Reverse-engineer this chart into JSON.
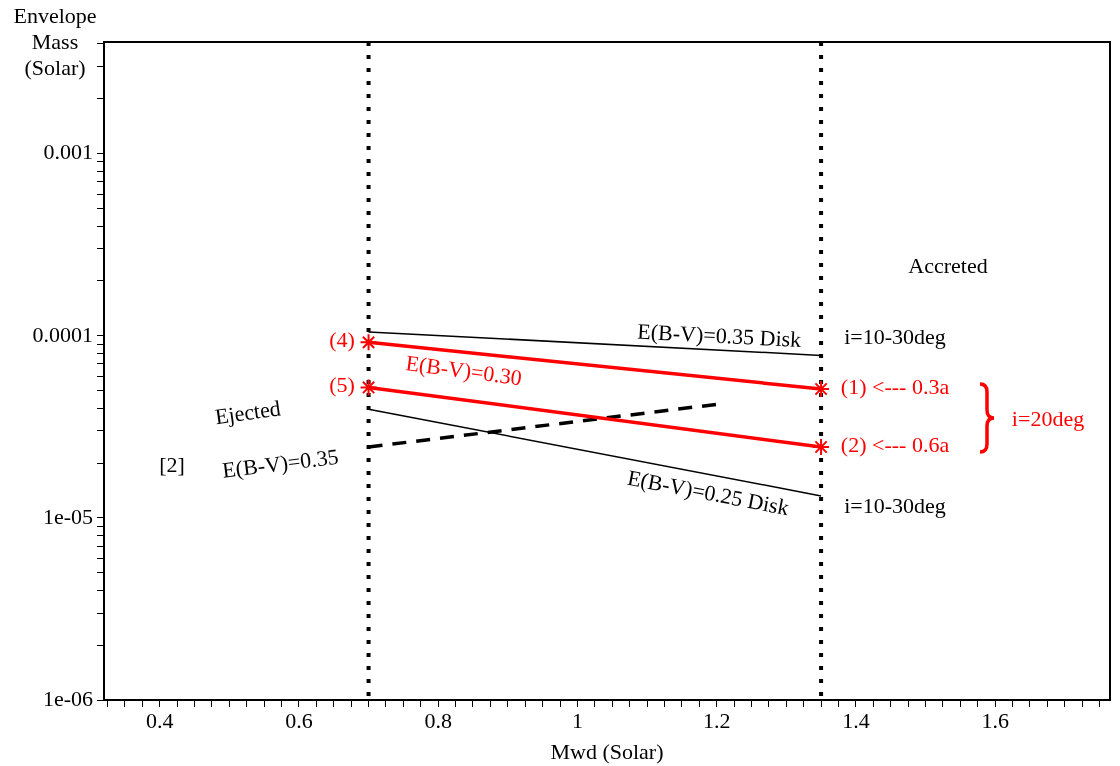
{
  "chart_data": {
    "type": "line",
    "xlabel": "Mwd (Solar)",
    "ylabel": "Envelope Mass (Solar)",
    "log": "y",
    "grid": false,
    "legend": false,
    "xlim": [
      0.32,
      1.765
    ],
    "ylim": [
      1e-06,
      0.0041
    ],
    "xticks": [
      {
        "value": 0.325,
        "label": null
      },
      {
        "value": 0.35,
        "label": null
      },
      {
        "value": 0.375,
        "label": null
      },
      0.4,
      {
        "value": 0.425,
        "label": null
      },
      {
        "value": 0.45,
        "label": null
      },
      {
        "value": 0.475,
        "label": null
      },
      {
        "value": 0.5,
        "label": null
      },
      {
        "value": 0.525,
        "label": null
      },
      {
        "value": 0.55,
        "label": null
      },
      {
        "value": 0.575,
        "label": null
      },
      0.6,
      {
        "value": 0.625,
        "label": null
      },
      {
        "value": 0.65,
        "label": null
      },
      {
        "value": 0.675,
        "label": null
      },
      {
        "value": 0.7,
        "label": null
      },
      {
        "value": 0.725,
        "label": null
      },
      {
        "value": 0.75,
        "label": null
      },
      {
        "value": 0.775,
        "label": null
      },
      0.8,
      {
        "value": 0.825,
        "label": null
      },
      {
        "value": 0.85,
        "label": null
      },
      {
        "value": 0.875,
        "label": null
      },
      {
        "value": 0.9,
        "label": null
      },
      {
        "value": 0.925,
        "label": null
      },
      {
        "value": 0.95,
        "label": null
      },
      {
        "value": 0.975,
        "label": null
      },
      1,
      {
        "value": 1.025,
        "label": null
      },
      {
        "value": 1.05,
        "label": null
      },
      {
        "value": 1.075,
        "label": null
      },
      {
        "value": 1.1,
        "label": null
      },
      {
        "value": 1.125,
        "label": null
      },
      {
        "value": 1.15,
        "label": null
      },
      {
        "value": 1.175,
        "label": null
      },
      1.2,
      {
        "value": 1.225,
        "label": null
      },
      {
        "value": 1.25,
        "label": null
      },
      {
        "value": 1.275,
        "label": null
      },
      {
        "value": 1.3,
        "label": null
      },
      {
        "value": 1.325,
        "label": null
      },
      {
        "value": 1.35,
        "label": null
      },
      {
        "value": 1.375,
        "label": null
      },
      1.4,
      {
        "value": 1.425,
        "label": null
      },
      {
        "value": 1.45,
        "label": null
      },
      {
        "value": 1.475,
        "label": null
      },
      {
        "value": 1.5,
        "label": null
      },
      {
        "value": 1.525,
        "label": null
      },
      {
        "value": 1.55,
        "label": null
      },
      {
        "value": 1.575,
        "label": null
      },
      1.6,
      {
        "value": 1.625,
        "label": null
      },
      {
        "value": 1.65,
        "label": null
      },
      {
        "value": 1.675,
        "label": null
      },
      {
        "value": 1.7,
        "label": null
      },
      {
        "value": 1.725,
        "label": null
      },
      {
        "value": 1.75,
        "label": null
      }
    ],
    "yticks": [
      {
        "value": 1e-06,
        "label": "1e-06"
      },
      {
        "value": 2e-06,
        "label": null
      },
      {
        "value": 3e-06,
        "label": null
      },
      {
        "value": 4e-06,
        "label": null
      },
      {
        "value": 5e-06,
        "label": null
      },
      {
        "value": 6e-06,
        "label": null
      },
      {
        "value": 7e-06,
        "label": null
      },
      {
        "value": 8e-06,
        "label": null
      },
      {
        "value": 9e-06,
        "label": null
      },
      {
        "value": 1e-05,
        "label": "1e-05"
      },
      {
        "value": 2e-05,
        "label": null
      },
      {
        "value": 3e-05,
        "label": null
      },
      {
        "value": 4e-05,
        "label": null
      },
      {
        "value": 5e-05,
        "label": null
      },
      {
        "value": 6e-05,
        "label": null
      },
      {
        "value": 7e-05,
        "label": null
      },
      {
        "value": 8e-05,
        "label": null
      },
      {
        "value": 9e-05,
        "label": null
      },
      {
        "value": 0.0001,
        "label": "0.0001"
      },
      {
        "value": 0.0002,
        "label": null
      },
      {
        "value": 0.0003,
        "label": null
      },
      {
        "value": 0.0004,
        "label": null
      },
      {
        "value": 0.0005,
        "label": null
      },
      {
        "value": 0.0006,
        "label": null
      },
      {
        "value": 0.0007,
        "label": null
      },
      {
        "value": 0.0008,
        "label": null
      },
      {
        "value": 0.0009,
        "label": null
      },
      {
        "value": 0.001,
        "label": "0.001"
      },
      {
        "value": 0.002,
        "label": null
      },
      {
        "value": 0.003,
        "label": null
      },
      {
        "value": 0.004,
        "label": null
      }
    ],
    "series": [
      {
        "name": "E(B-V)=0.35 Disk",
        "color": "#000000",
        "x": [
          0.7,
          1.35
        ],
        "values": [
          0.000105,
          7.8e-05
        ],
        "marker": "none",
        "line_style": "solid"
      },
      {
        "color": "#ff0000",
        "x": [
          0.7,
          1.35
        ],
        "values": [
          9.2e-05,
          5.1e-05
        ],
        "marker": "cross",
        "line_style": "solid"
      },
      {
        "name": "E(B-V)=0.30",
        "color": "#ff0000",
        "x": [
          0.7,
          1.35
        ],
        "values": [
          5.2e-05,
          2.45e-05
        ],
        "marker": "cross",
        "line_style": "solid"
      },
      {
        "name": "E(B-V)=0.25 Disk",
        "color": "#000000",
        "x": [
          0.7,
          1.35
        ],
        "values": [
          3.95e-05,
          1.32e-05
        ],
        "marker": "none",
        "line_style": "solid"
      },
      {
        "name": "E(B-V)=0.35",
        "color": "#000000",
        "x": [
          0.7,
          1.2
        ],
        "values": [
          2.45e-05,
          4.2e-05
        ],
        "marker": "none",
        "line_style": "dashed"
      }
    ],
    "ref_lines": [
      {
        "axis": "x",
        "value": 0.7,
        "color": "#000000",
        "line_style": "dotted"
      },
      {
        "axis": "x",
        "value": 1.35,
        "color": "#000000",
        "line_style": "dotted"
      }
    ],
    "annotations": [
      "(4)",
      "(5)",
      "(1) <--- 0.3a",
      "(2) <--- 0.6a",
      "i=10-30deg",
      "i=10-30deg",
      "i=20deg",
      "Accreted",
      "Ejected",
      "[2]"
    ]
  }
}
